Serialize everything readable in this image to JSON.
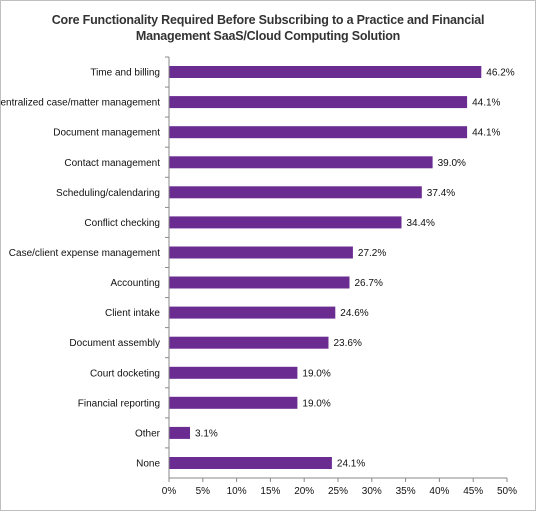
{
  "chart_data": {
    "type": "bar",
    "orientation": "horizontal",
    "title_line1": "Core Functionality Required Before Subscribing to a Practice and Financial",
    "title_line2": "Management SaaS/Cloud Computing Solution",
    "categories": [
      "Time and billing",
      "Centralized case/matter management",
      "Document management",
      "Contact management",
      "Scheduling/calendaring",
      "Conflict checking",
      "Case/client expense management",
      "Accounting",
      "Client intake",
      "Document assembly",
      "Court docketing",
      "Financial reporting",
      "Other",
      "None"
    ],
    "values": [
      46.2,
      44.1,
      44.1,
      39.0,
      37.4,
      34.4,
      27.2,
      26.7,
      24.6,
      23.6,
      19.0,
      19.0,
      3.1,
      24.1
    ],
    "value_labels": [
      "46.2%",
      "44.1%",
      "44.1%",
      "39.0%",
      "37.4%",
      "34.4%",
      "27.2%",
      "26.7%",
      "24.6%",
      "23.6%",
      "19.0%",
      "19.0%",
      "3.1%",
      "24.1%"
    ],
    "xlim": [
      0,
      50
    ],
    "xticks": [
      "0%",
      "5%",
      "10%",
      "15%",
      "20%",
      "25%",
      "30%",
      "35%",
      "40%",
      "45%",
      "50%"
    ],
    "grid": false,
    "bar_color": "#6a2c91"
  }
}
